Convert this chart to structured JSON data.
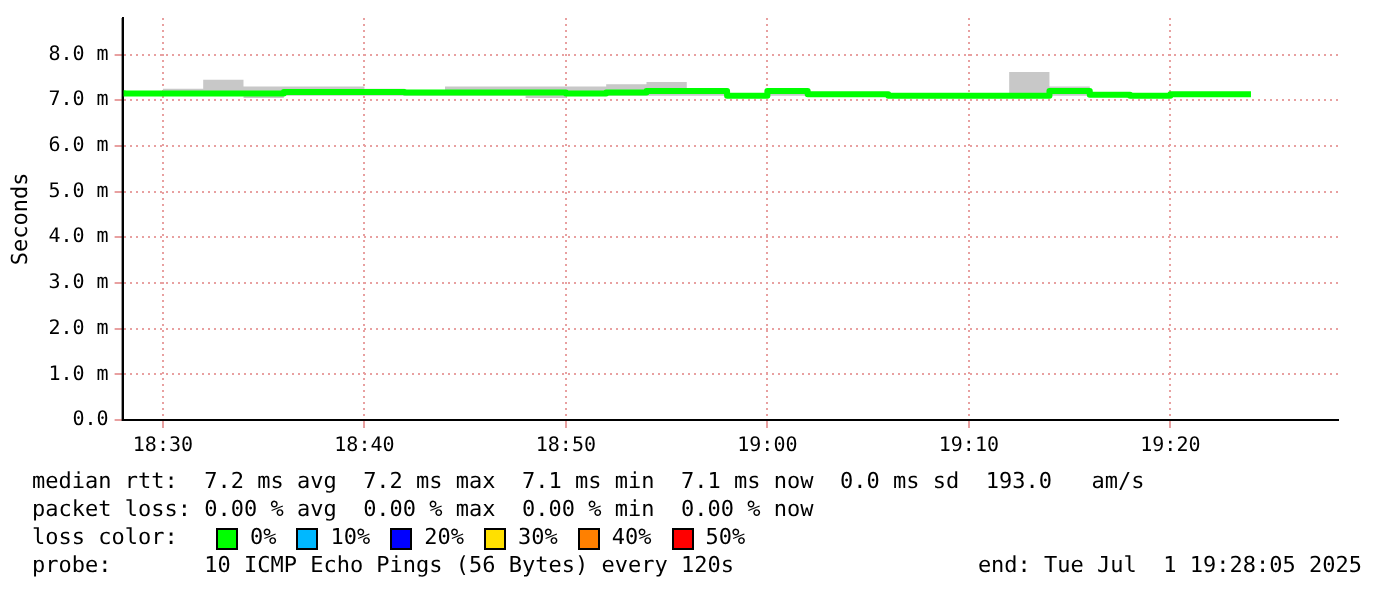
{
  "chart_data": {
    "type": "step",
    "ylabel": "Seconds",
    "x": [
      18.46667,
      18.5,
      18.53333,
      18.56667,
      18.6,
      18.63333,
      18.66667,
      18.7,
      18.73333,
      18.76667,
      18.8,
      18.83333,
      18.86667,
      18.9,
      18.93333,
      18.96667,
      19,
      19.03333,
      19.06667,
      19.1,
      19.13333,
      19.16667,
      19.2,
      19.23333,
      19.26667,
      19.3,
      19.33333,
      19.36667,
      19.4
    ],
    "series": [
      {
        "color": "#00ff00",
        "values": [
          7.22,
          7.15,
          7.15,
          7.15,
          7.15,
          7.18,
          7.18,
          7.18,
          7.17,
          7.17,
          7.17,
          7.17,
          7.15,
          7.17,
          7.2,
          7.2,
          7.1,
          7.2,
          7.13,
          7.13,
          7.1,
          7.1,
          7.1,
          7.1,
          7.2,
          7.12,
          7.1,
          7.13,
          7.13
        ],
        "upper": [
          7.3,
          7.2,
          7.25,
          7.45,
          7.3,
          7.3,
          7.3,
          7.25,
          7.2,
          7.3,
          7.3,
          7.3,
          7.3,
          7.35,
          7.4,
          7.25,
          7.1,
          7.2,
          7.15,
          7.15,
          7.15,
          7.15,
          7.15,
          7.62,
          7.3,
          7.1,
          7.12,
          7.15,
          7.15
        ],
        "lower": [
          7.1,
          7.1,
          7.1,
          7.1,
          7.05,
          7.1,
          7.1,
          7.1,
          7.1,
          7.1,
          7.1,
          7.05,
          7.1,
          7.1,
          7.1,
          7.1,
          7.05,
          7.1,
          7.1,
          7.1,
          7.05,
          7.05,
          7.1,
          7.1,
          7.1,
          7.1,
          7.05,
          7.1,
          7.1
        ]
      }
    ],
    "xlim": [
      18.46667,
      19.472
    ],
    "ylim": [
      0,
      8.8
    ],
    "xticks": [
      {
        "value": 18.5,
        "label": "18:30"
      },
      {
        "value": 18.66667,
        "label": "18:40"
      },
      {
        "value": 18.83333,
        "label": "18:50"
      },
      {
        "value": 19,
        "label": "19:00"
      },
      {
        "value": 19.16667,
        "label": "19:10"
      },
      {
        "value": 19.33333,
        "label": "19:20"
      }
    ],
    "yticks": [
      {
        "value": 0,
        "label": "0.0"
      },
      {
        "value": 1,
        "label": "1.0 m"
      },
      {
        "value": 2,
        "label": "2.0 m"
      },
      {
        "value": 3,
        "label": "3.0 m"
      },
      {
        "value": 4,
        "label": "4.0 m"
      },
      {
        "value": 5,
        "label": "5.0 m"
      },
      {
        "value": 6,
        "label": "6.0 m"
      },
      {
        "value": 7,
        "label": "7.0 m"
      },
      {
        "value": 8,
        "label": "8.0 m"
      }
    ],
    "grid": true,
    "annotations": [
      "median rtt:  7.2 ms avg  7.2 ms max  7.1 ms min  7.1 ms now  0.0 ms sd  193.0   am/s",
      "packet loss: 0.00 % avg  0.00 % max  0.00 % min  0.00 % now",
      "loss color:",
      "0%",
      "10%",
      "20%",
      "30%",
      "40%",
      "50%",
      "probe:       10 ICMP Echo Pings (56 Bytes) every 120s",
      "end: Tue Jul  1 19:28:05 2025"
    ]
  }
}
